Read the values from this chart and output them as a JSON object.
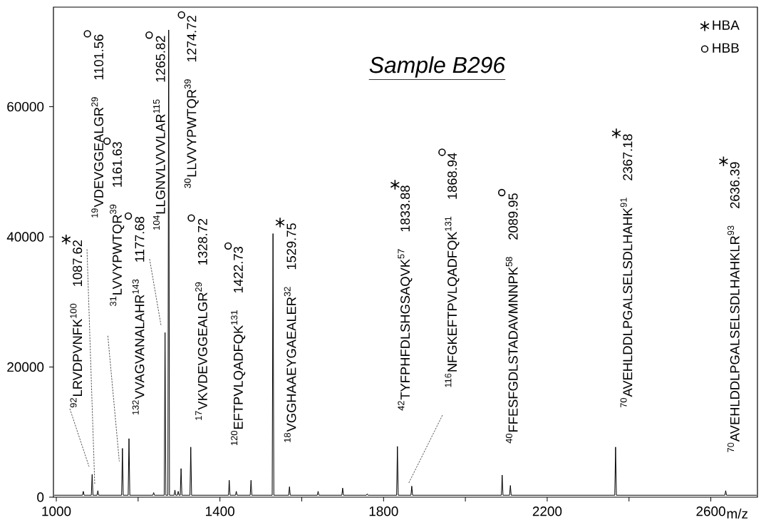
{
  "chart_data": {
    "type": "line",
    "title": "Sample B296",
    "xlabel": "m/z",
    "xlim": [
      993,
      2714
    ],
    "ylim": [
      0,
      75300
    ],
    "xticks": [
      1000,
      {
        "value": 1200,
        "label": null
      },
      1400,
      {
        "value": 1600,
        "label": null
      },
      1800,
      {
        "value": 2000,
        "label": null
      },
      2200,
      {
        "value": 2400,
        "label": null
      },
      2600
    ],
    "yticks": [
      0,
      20000,
      40000,
      60000
    ],
    "legend": "top right",
    "series": [
      {
        "color": "#000000",
        "x": [
          995,
          1064,
          1066,
          1068,
          1085.62,
          1087.62,
          1089.62,
          1099.56,
          1101.56,
          1103.56,
          1159.63,
          1161.63,
          1163.63,
          1175.68,
          1177.68,
          1179.68,
          1236,
          1238,
          1240,
          1263.82,
          1265.82,
          1267.82,
          1272.72,
          1274.72,
          1276.72,
          1288,
          1290,
          1292,
          1296,
          1298,
          1300,
          1303,
          1305,
          1307,
          1326.72,
          1328.72,
          1330.72,
          1420.73,
          1422.73,
          1424.73,
          1438,
          1440,
          1442,
          1474,
          1476,
          1478,
          1527.75,
          1529.75,
          1531.75,
          1568,
          1570,
          1572,
          1638,
          1640,
          1642,
          1698,
          1700,
          1702,
          1758,
          1760,
          1762,
          1831.88,
          1833.88,
          1835.88,
          1866.94,
          1868.94,
          1870.94,
          2087.95,
          2089.95,
          2091.95,
          2108,
          2110,
          2112,
          2365.18,
          2367.18,
          2369.18,
          2634.39,
          2636.39,
          2638.39,
          2712
        ],
        "values": [
          300,
          300,
          900,
          300,
          300,
          3500,
          300,
          300,
          1000,
          300,
          300,
          7500,
          300,
          300,
          9000,
          300,
          300,
          700,
          300,
          300,
          25300,
          300,
          300,
          71800,
          300,
          300,
          1100,
          300,
          300,
          900,
          300,
          300,
          4400,
          300,
          300,
          7700,
          300,
          300,
          2600,
          300,
          300,
          900,
          300,
          300,
          2600,
          300,
          300,
          40500,
          300,
          300,
          1600,
          300,
          300,
          900,
          300,
          300,
          1400,
          300,
          300,
          500,
          300,
          300,
          7800,
          300,
          300,
          1700,
          300,
          300,
          3400,
          300,
          300,
          1800,
          300,
          300,
          7700,
          300,
          300,
          1000,
          300,
          300
        ]
      },
      {
        "type": "line",
        "line_style": "dotted",
        "color": "#555555",
        "x": [
          1033,
          1080
        ],
        "values": [
          13600,
          4700
        ]
      },
      {
        "type": "line",
        "line_style": "dotted",
        "color": "#555555",
        "x": [
          1075,
          1094
        ],
        "values": [
          38100,
          1900
        ]
      },
      {
        "type": "line",
        "line_style": "dotted",
        "color": "#555555",
        "x": [
          1126,
          1154
        ],
        "values": [
          24800,
          5500
        ]
      },
      {
        "type": "line",
        "line_style": "dotted",
        "color": "#555555",
        "x": [
          1228,
          1256
        ],
        "values": [
          36600,
          26400
        ]
      },
      {
        "type": "line",
        "line_style": "dotted",
        "color": "#555555",
        "x": [
          1944,
          1861
        ],
        "values": [
          12600,
          2100
        ]
      },
      {
        "type": "scatter",
        "name": "HBA",
        "marker": "cross",
        "color": "#000000",
        "x": [
          1024,
          1547,
          1828,
          2369,
          2631
        ],
        "values": [
          39600,
          42200,
          48000,
          55900,
          51600
        ]
      },
      {
        "type": "scatter",
        "name": "HBB",
        "marker": "circle",
        "color": "#000000",
        "x": [
          1076,
          1124,
          1176,
          1227,
          1306,
          1330,
          1420,
          1943,
          2089
        ],
        "values": [
          71200,
          54700,
          43200,
          71000,
          74100,
          42900,
          38600,
          53000,
          46800
        ]
      }
    ],
    "annotations": [
      "$^{92}$LRVDPVNFK$^{100}$",
      "1087.62",
      "$^{19}$VDEVGGEALGR$^{29}$",
      "1101.56",
      "$^{31}$LVVYPWTQR$^{39}$",
      "1161.63",
      "$^{132}$VVAGVANALAHR$^{143}$",
      "1177.68",
      "$^{104}$LLGNVLVVVLAR$^{115}$",
      "1265.82",
      "$^{30}$LLVVYPWTQR$^{39}$",
      "1274.72",
      "$^{17}$VKVDEVGGEALGR$^{29}$",
      "1328.72",
      "$^{120}$EFTPVLQADFQK$^{131}$",
      "1422.73",
      "$^{18}$VGGHAAEYGAEALER$^{32}$",
      "1529.75",
      "$^{42}$TYFPHFDLSHGSAQVK$^{57}$",
      "1833.88",
      "$^{116}$NFGKEFTPVLQADFQK$^{131}$",
      "1868.94",
      "$^{40}$FFESFGDLSTADAVMNNPK$^{58}$",
      "2089.95",
      "$^{70}$AVEHLDDLPGALSELSDLHAHK$^{91}$",
      "2367.18",
      "$^{70}$AVEHLDDLPGALSELSDLHAHKLR$^{93}$",
      "2636.39"
    ]
  }
}
